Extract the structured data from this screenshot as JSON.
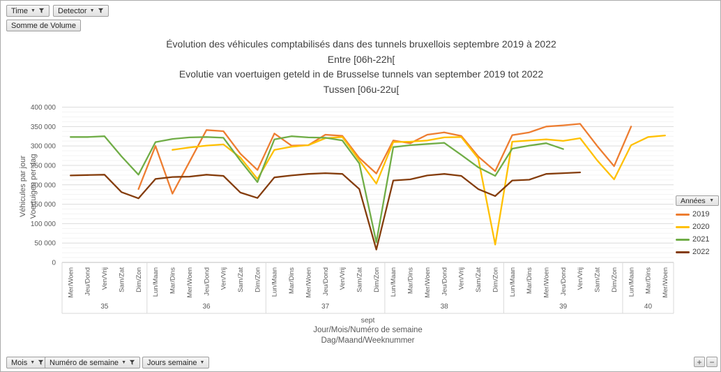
{
  "pivot_filters": {
    "top": [
      {
        "label": "Time",
        "has_filter": true
      },
      {
        "label": "Detector",
        "has_filter": true
      }
    ],
    "value_button": "Somme de Volume",
    "bottom": [
      {
        "label": "Mois",
        "has_filter": true
      },
      {
        "label": "Numéro de semaine",
        "has_filter": true
      },
      {
        "label": "Jours semaine",
        "has_filter": false
      }
    ]
  },
  "zoom_controls": {
    "plus": "+",
    "minus": "−"
  },
  "chart_data": {
    "type": "line",
    "title_lines": [
      "Évolution des véhicules comptabilisés dans des tunnels bruxellois septembre 2019 à 2022",
      "Entre [06h-22h[",
      "Evolutie van voertuigen geteld in de Brusselse tunnels van september 2019 tot 2022",
      "Tussen [06u-22u["
    ],
    "ylabel_lines": [
      "Véhicules par jour",
      "Voertuigen per dag"
    ],
    "xlabel_lines": [
      "sept",
      "Jour/Mois/Numéro de semaine",
      "Dag/Maand/Weeknummer"
    ],
    "ylim": [
      0,
      400000
    ],
    "y_ticks": [
      0,
      50000,
      100000,
      150000,
      200000,
      250000,
      300000,
      350000,
      400000
    ],
    "y_minor_step": 12500,
    "grid": "on",
    "legend_title": "Années",
    "legend_position": "right",
    "categories": [
      "Mer/Woen",
      "Jeu/Dond",
      "Ven/Vrij",
      "Sam/Zat",
      "Dim/Zon",
      "Lun/Maan",
      "Mar/Dins",
      "Mer/Woen",
      "Jeu/Dond",
      "Ven/Vrij",
      "Sam/Zat",
      "Dim/Zon",
      "Lun/Maan",
      "Mar/Dins",
      "Mer/Woen",
      "Jeu/Dond",
      "Ven/Vrij",
      "Sam/Zat",
      "Dim/Zon",
      "Lun/Maan",
      "Mar/Dins",
      "Mer/Woen",
      "Jeu/Dond",
      "Ven/Vrij",
      "Sam/Zat",
      "Dim/Zon",
      "Lun/Maan",
      "Mar/Dins",
      "Mer/Woen",
      "Jeu/Dond",
      "Ven/Vrij",
      "Sam/Zat",
      "Dim/Zon",
      "Lun/Maan",
      "Mar/Dins",
      "Mer/Woen"
    ],
    "week_groups": [
      {
        "label": "35",
        "count": 5
      },
      {
        "label": "36",
        "count": 7
      },
      {
        "label": "37",
        "count": 7
      },
      {
        "label": "38",
        "count": 7
      },
      {
        "label": "39",
        "count": 7
      },
      {
        "label": "40",
        "count": 3
      }
    ],
    "series": [
      {
        "name": "2019",
        "color": "#ED7D31",
        "values": [
          null,
          null,
          null,
          null,
          189000,
          300000,
          177000,
          259000,
          341000,
          338000,
          280000,
          238000,
          332000,
          301000,
          302000,
          329000,
          326000,
          269000,
          229000,
          314000,
          307000,
          329000,
          335000,
          326000,
          273000,
          235000,
          328000,
          335000,
          350000,
          353000,
          357000,
          300000,
          248000,
          350000,
          null,
          null
        ]
      },
      {
        "name": "2020",
        "color": "#FFC000",
        "values": [
          null,
          null,
          null,
          null,
          null,
          null,
          290000,
          296000,
          301000,
          304000,
          270000,
          215000,
          290000,
          298000,
          302000,
          320000,
          323000,
          263000,
          203000,
          310000,
          311000,
          314000,
          322000,
          323000,
          268000,
          46000,
          311000,
          314000,
          317000,
          313000,
          320000,
          263000,
          214000,
          302000,
          323000,
          327000
        ]
      },
      {
        "name": "2021",
        "color": "#70AD47",
        "values": [
          323000,
          323000,
          325000,
          273000,
          226000,
          310000,
          318000,
          322000,
          323000,
          321000,
          262000,
          207000,
          317000,
          325000,
          322000,
          321000,
          314000,
          255000,
          52000,
          297000,
          302000,
          305000,
          308000,
          277000,
          245000,
          223000,
          293000,
          301000,
          307000,
          292000,
          null,
          null,
          null,
          null,
          null,
          null
        ]
      },
      {
        "name": "2022",
        "color": "#843C0B",
        "values": [
          224000,
          225000,
          226000,
          181000,
          165000,
          215000,
          220000,
          221000,
          226000,
          223000,
          180000,
          166000,
          219000,
          224000,
          228000,
          230000,
          228000,
          189000,
          33000,
          211000,
          214000,
          224000,
          228000,
          223000,
          189000,
          171000,
          211000,
          213000,
          228000,
          230000,
          232000,
          null,
          null,
          null,
          null,
          null
        ]
      }
    ]
  }
}
